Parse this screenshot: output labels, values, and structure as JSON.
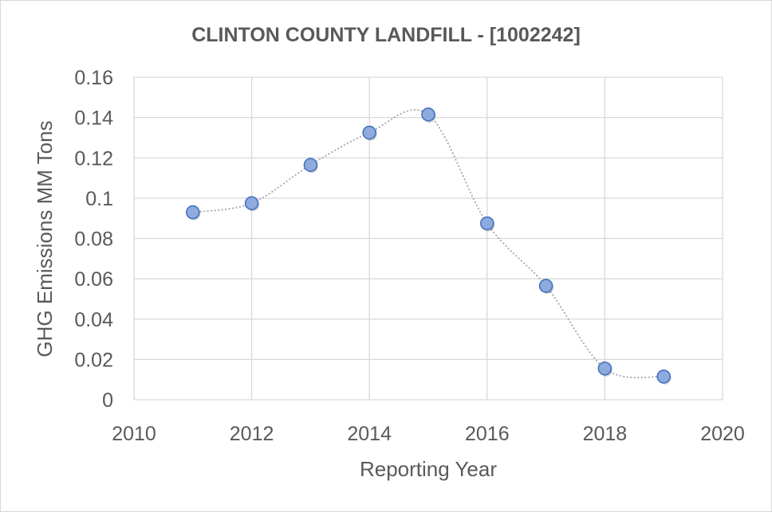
{
  "chart_data": {
    "type": "scatter",
    "title": "CLINTON COUNTY LANDFILL - [1002242]",
    "xlabel": "Reporting Year",
    "ylabel": "GHG Emissions MM Tons",
    "xlim": [
      2010,
      2020
    ],
    "ylim": [
      0,
      0.16
    ],
    "x_ticks": [
      "2010",
      "2012",
      "2014",
      "2016",
      "2018",
      "2020"
    ],
    "y_ticks": [
      "0",
      "0.02",
      "0.04",
      "0.06",
      "0.08",
      "0.1",
      "0.12",
      "0.14",
      "0.16"
    ],
    "x_tick_values": [
      2010,
      2012,
      2014,
      2016,
      2018,
      2020
    ],
    "y_tick_values": [
      0,
      0.02,
      0.04,
      0.06,
      0.08,
      0.1,
      0.12,
      0.14,
      0.16
    ],
    "grid": true,
    "smoothed_line": true,
    "series": [
      {
        "name": "GHG Emissions",
        "x": [
          2011,
          2012,
          2013,
          2014,
          2015,
          2016,
          2017,
          2018,
          2019
        ],
        "y": [
          0.093,
          0.0975,
          0.1165,
          0.1325,
          0.1415,
          0.0875,
          0.0565,
          0.0155,
          0.0115
        ]
      }
    ],
    "colors": {
      "marker_fill": "#8faadc",
      "marker_stroke": "#4472c4",
      "line": "#a6a6a6",
      "grid": "#d9d9d9",
      "text": "#595959"
    }
  }
}
